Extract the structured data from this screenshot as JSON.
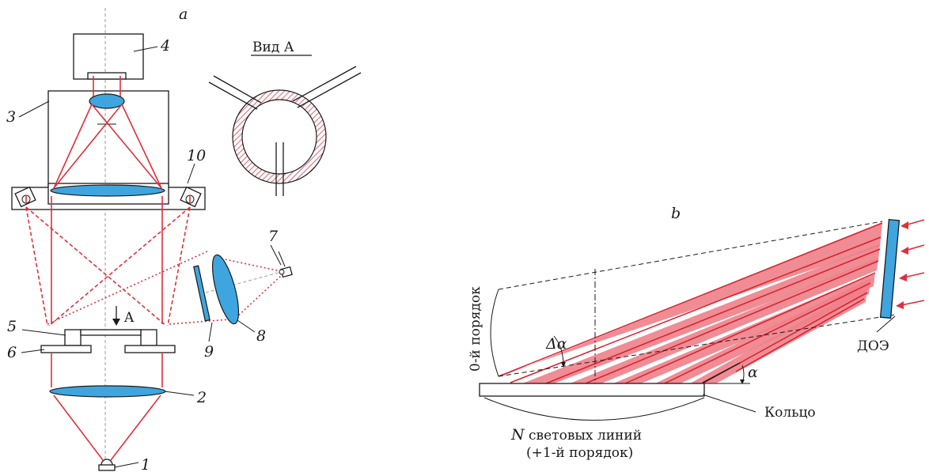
{
  "panel_a": {
    "title": "a",
    "view_label": "Вид А",
    "arrow_label": "A",
    "components": [
      {
        "id": "1"
      },
      {
        "id": "2"
      },
      {
        "id": "3"
      },
      {
        "id": "4"
      },
      {
        "id": "5"
      },
      {
        "id": "6"
      },
      {
        "id": "7"
      },
      {
        "id": "8"
      },
      {
        "id": "9"
      },
      {
        "id": "10"
      }
    ]
  },
  "panel_b": {
    "title": "b",
    "order0_label": "0-й порядок",
    "delta_alpha_label": "Δα",
    "alpha_label": "α",
    "doe_label": "ДОЭ",
    "ring_label": "Кольцо",
    "lines_prefix": "N",
    "lines_label": " световых линий",
    "order1_label": "(+1-й порядок)"
  },
  "colors": {
    "ray": "#e0303c",
    "lens": "#3ea5df",
    "hatch": "#d9707a",
    "beam_fill": "#ee8088",
    "line": "#1a1a1a"
  }
}
